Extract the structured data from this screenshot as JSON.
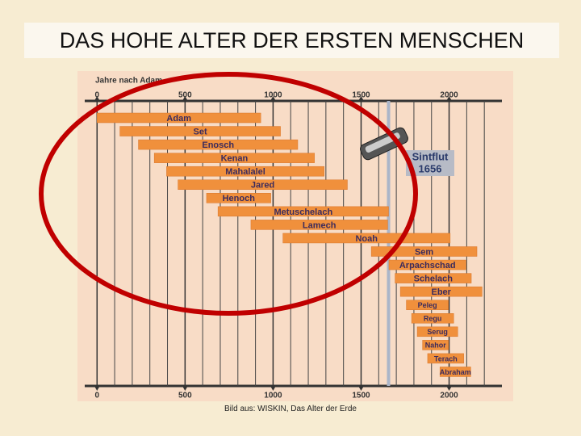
{
  "slide_title": "DAS HOHE ALTER DER ERSTEN MENSCHEN",
  "caption": "Bild aus: WISKIN, Das Alter der Erde",
  "chart_data": {
    "type": "range-bar",
    "x_label": "Jahre nach Adam",
    "categories": [
      "Adam",
      "Set",
      "Enosch",
      "Kenan",
      "Mahalalel",
      "Jared",
      "Henoch",
      "Metuschelach",
      "Lamech",
      "Noah",
      "Sem",
      "Arpachschad",
      "Schelach",
      "Eber",
      "Peleg",
      "Regu",
      "Serug",
      "Nahor",
      "Terach",
      "Abraham"
    ],
    "start": [
      0,
      130,
      235,
      325,
      395,
      460,
      622,
      687,
      874,
      1056,
      1558,
      1658,
      1693,
      1723,
      1757,
      1787,
      1819,
      1849,
      1878,
      1948
    ],
    "end": [
      930,
      1042,
      1140,
      1235,
      1290,
      1422,
      987,
      1656,
      1651,
      2006,
      2158,
      2096,
      2126,
      2187,
      1996,
      2026,
      2049,
      1997,
      2083,
      2123
    ],
    "color": "#f0903c",
    "xlim": [
      -70,
      2300
    ],
    "xticks": [
      0,
      500,
      1000,
      1500,
      2000
    ],
    "x_minor_ticks": [
      100,
      200,
      300,
      400,
      600,
      700,
      800,
      900,
      1100,
      1200,
      1300,
      1400,
      1600,
      1700,
      1800,
      1900,
      2100,
      2200
    ],
    "flood": {
      "label": "Sintflut",
      "year": 1656
    }
  }
}
